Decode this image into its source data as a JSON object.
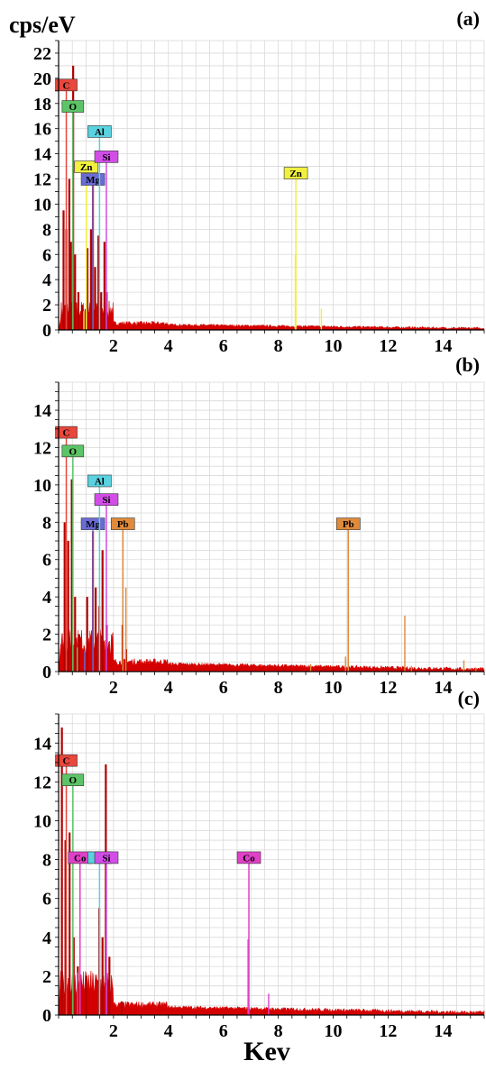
{
  "ylabel": "cps/eV",
  "xlabel": "Kev",
  "colors": {
    "background_fill": "#d40000",
    "grid": "#d9d9d9",
    "C": "#e8473c",
    "O": "#5cc466",
    "Al": "#5ad2e0",
    "Mg": "#6b6bd6",
    "Si": "#d24de8",
    "Zn": "#f0f040",
    "Pb": "#e08a3a",
    "Co": "#e040c8"
  },
  "chart_data": [
    {
      "type": "line",
      "panel_label": "(a)",
      "xlim": [
        0,
        15.5
      ],
      "ylim": [
        0,
        23
      ],
      "xticks": [
        2,
        4,
        6,
        8,
        10,
        12,
        14
      ],
      "yticks": [
        0,
        2,
        4,
        6,
        8,
        10,
        12,
        14,
        16,
        18,
        20,
        22
      ],
      "background_peaks": [
        {
          "x": 0.18,
          "y": 9.5
        },
        {
          "x": 0.28,
          "y": 8
        },
        {
          "x": 0.39,
          "y": 12
        },
        {
          "x": 0.45,
          "y": 7
        },
        {
          "x": 0.53,
          "y": 21
        },
        {
          "x": 0.6,
          "y": 6
        },
        {
          "x": 0.72,
          "y": 3
        },
        {
          "x": 0.85,
          "y": 2
        },
        {
          "x": 1.05,
          "y": 6.5
        },
        {
          "x": 1.18,
          "y": 8
        },
        {
          "x": 1.25,
          "y": 11.5
        },
        {
          "x": 1.33,
          "y": 5
        },
        {
          "x": 1.45,
          "y": 7.5
        },
        {
          "x": 1.55,
          "y": 3
        },
        {
          "x": 1.67,
          "y": 7
        },
        {
          "x": 1.75,
          "y": 3
        }
      ],
      "element_lines": [
        {
          "element": "C",
          "x": 0.28,
          "y": 19
        },
        {
          "element": "O",
          "x": 0.52,
          "y": 17.3
        },
        {
          "element": "Zn",
          "x": 1.01,
          "y": 12.5
        },
        {
          "element": "Mg",
          "x": 1.25,
          "y": 11.5
        },
        {
          "element": "Al",
          "x": 1.49,
          "y": 15.3
        },
        {
          "element": "Si",
          "x": 1.74,
          "y": 13.3
        },
        {
          "element": "Zn",
          "x": 8.64,
          "y": 12.0
        }
      ],
      "extra_lines": [
        {
          "element": "Zn",
          "x": 8.62,
          "y": 6.0
        },
        {
          "element": "Zn",
          "x": 9.57,
          "y": 1.7
        },
        {
          "element": "Zn",
          "x": 0.92,
          "y": 1.5
        }
      ]
    },
    {
      "type": "line",
      "panel_label": "(b)",
      "xlim": [
        0,
        15.5
      ],
      "ylim": [
        0,
        15.5
      ],
      "xticks": [
        2,
        4,
        6,
        8,
        10,
        12,
        14
      ],
      "yticks": [
        0,
        2,
        4,
        6,
        8,
        10,
        12,
        14
      ],
      "background_peaks": [
        {
          "x": 0.22,
          "y": 8
        },
        {
          "x": 0.35,
          "y": 7
        },
        {
          "x": 0.48,
          "y": 10.3
        },
        {
          "x": 0.6,
          "y": 4
        },
        {
          "x": 0.75,
          "y": 2
        },
        {
          "x": 1.04,
          "y": 4
        },
        {
          "x": 1.25,
          "y": 7.5
        },
        {
          "x": 1.35,
          "y": 4.5
        },
        {
          "x": 1.48,
          "y": 3.5
        },
        {
          "x": 1.6,
          "y": 6.5
        },
        {
          "x": 1.75,
          "y": 2.5
        },
        {
          "x": 2.33,
          "y": 2.5
        },
        {
          "x": 2.46,
          "y": 1.2
        }
      ],
      "element_lines": [
        {
          "element": "C",
          "x": 0.28,
          "y": 12.5
        },
        {
          "element": "O",
          "x": 0.52,
          "y": 11.5
        },
        {
          "element": "Mg",
          "x": 1.25,
          "y": 7.6
        },
        {
          "element": "Al",
          "x": 1.49,
          "y": 9.9
        },
        {
          "element": "Si",
          "x": 1.74,
          "y": 8.9
        },
        {
          "element": "Pb",
          "x": 2.34,
          "y": 7.6
        },
        {
          "element": "Pb",
          "x": 10.55,
          "y": 7.6
        }
      ],
      "extra_lines": [
        {
          "element": "Pb",
          "x": 2.45,
          "y": 4.5
        },
        {
          "element": "Pb",
          "x": 9.18,
          "y": 0.4
        },
        {
          "element": "Pb",
          "x": 10.45,
          "y": 0.8
        },
        {
          "element": "Pb",
          "x": 12.61,
          "y": 3.0
        },
        {
          "element": "Pb",
          "x": 12.85,
          "y": 0.3
        },
        {
          "element": "Pb",
          "x": 14.76,
          "y": 0.6
        },
        {
          "element": "Pb",
          "x": 15.2,
          "y": 0.2
        },
        {
          "element": "Mg",
          "x": 0.95,
          "y": 1.1
        },
        {
          "element": "O",
          "x": 0.68,
          "y": 1.3
        }
      ]
    },
    {
      "type": "line",
      "panel_label": "(c)",
      "xlim": [
        0,
        15.5
      ],
      "ylim": [
        0,
        15.5
      ],
      "xticks": [
        2,
        4,
        6,
        8,
        10,
        12,
        14
      ],
      "yticks": [
        0,
        2,
        4,
        6,
        8,
        10,
        12,
        14
      ],
      "background_peaks": [
        {
          "x": 0.12,
          "y": 14.8
        },
        {
          "x": 0.25,
          "y": 9
        },
        {
          "x": 0.4,
          "y": 9.4
        },
        {
          "x": 0.55,
          "y": 4
        },
        {
          "x": 0.7,
          "y": 2.5
        },
        {
          "x": 1.0,
          "y": 2
        },
        {
          "x": 1.48,
          "y": 5.5
        },
        {
          "x": 1.6,
          "y": 4
        },
        {
          "x": 1.72,
          "y": 12.9
        },
        {
          "x": 1.85,
          "y": 3
        },
        {
          "x": 2.3,
          "y": 0.7
        }
      ],
      "element_lines": [
        {
          "element": "C",
          "x": 0.28,
          "y": 12.8
        },
        {
          "element": "O",
          "x": 0.52,
          "y": 11.8
        },
        {
          "element": "Co",
          "x": 0.78,
          "y": 7.8
        },
        {
          "element": "Al",
          "x": 1.49,
          "y": 7.8
        },
        {
          "element": "Si",
          "x": 1.74,
          "y": 7.8
        },
        {
          "element": "Co",
          "x": 6.93,
          "y": 7.8
        }
      ],
      "extra_lines": [
        {
          "element": "Co",
          "x": 6.9,
          "y": 3.9
        },
        {
          "element": "Co",
          "x": 7.65,
          "y": 1.1
        },
        {
          "element": "Co",
          "x": 0.69,
          "y": 2.2
        }
      ]
    }
  ]
}
